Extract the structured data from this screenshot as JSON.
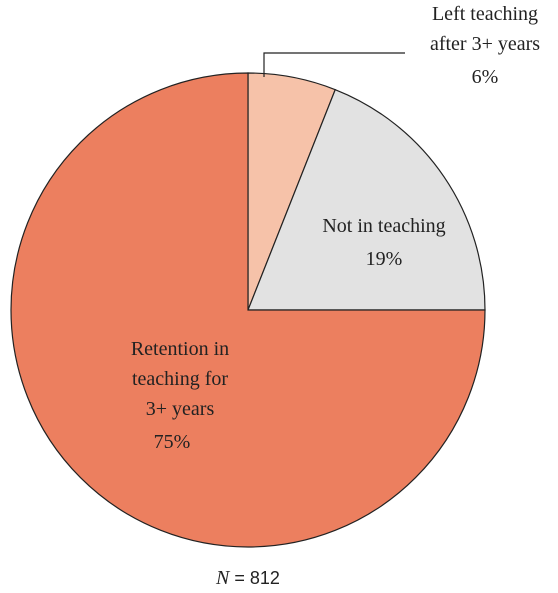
{
  "chart_data": {
    "type": "pie",
    "categories": [
      "Left teaching\nafter 3+ years",
      "Not in teaching",
      "Retention in\nteaching for\n3+ years"
    ],
    "values": [
      6,
      19,
      75
    ],
    "value_labels": [
      "6%",
      "19%",
      "75%"
    ],
    "colors": [
      "#f6c2a9",
      "#e2e2e2",
      "#ec7f5f"
    ],
    "note": {
      "symbol": "N",
      "text": "= 812"
    }
  }
}
